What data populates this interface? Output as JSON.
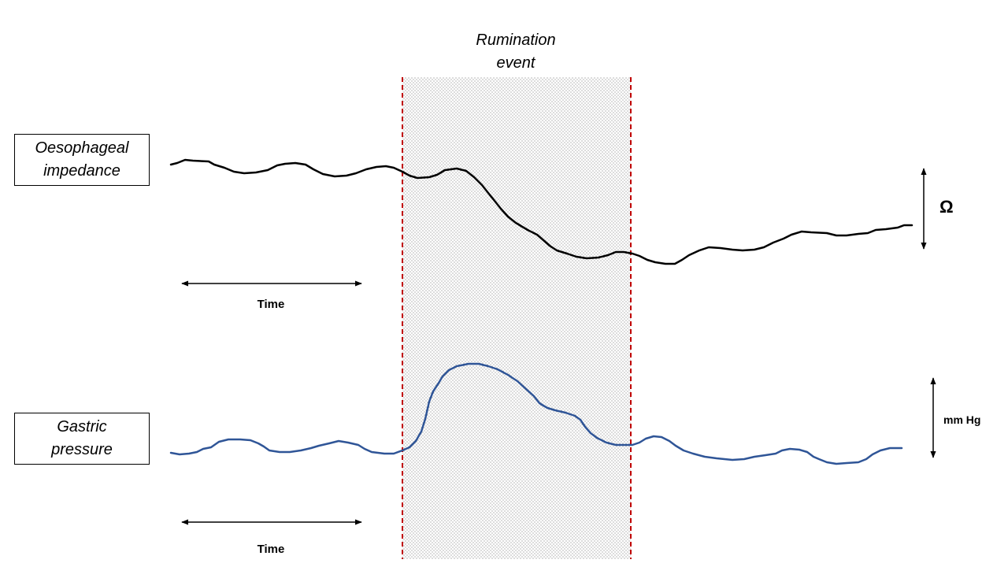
{
  "event": {
    "label": "Rumination\nevent"
  },
  "traces": [
    {
      "id": "oesophageal-impedance",
      "label": "Oesophageal\nimpedance",
      "unit": "Ω",
      "color": "#000000"
    },
    {
      "id": "gastric-pressure",
      "label": "Gastric\npressure",
      "unit": "mm Hg",
      "color": "#2f5597"
    }
  ],
  "time_axis": {
    "label": "Time"
  },
  "colors": {
    "event_boundary": "#c00000",
    "event_shading": "#555555",
    "impedance_trace": "#000000",
    "pressure_trace": "#2f5597"
  }
}
